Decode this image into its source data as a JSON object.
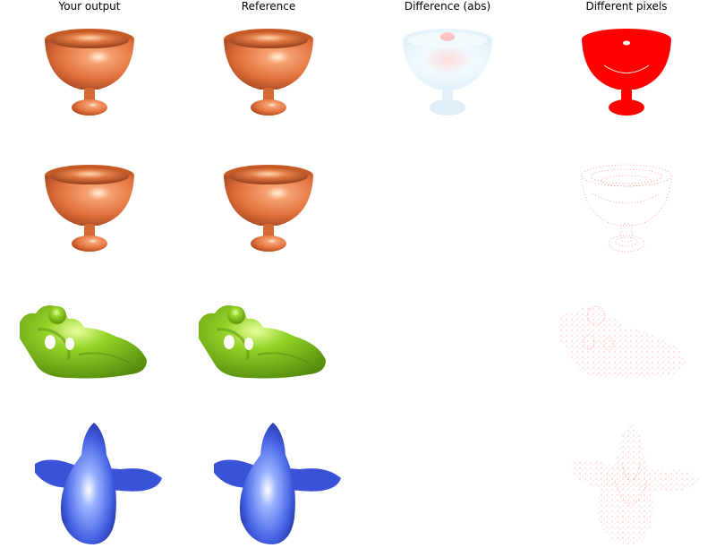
{
  "columns": [
    "Your output",
    "Reference",
    "Difference (abs)",
    "Different pixels"
  ],
  "rows": [
    {
      "model": "cup",
      "color": "#e8804e"
    },
    {
      "model": "cup",
      "color": "#e8804e"
    },
    {
      "model": "figure",
      "color": "#86cc22"
    },
    {
      "model": "airplane",
      "color": "#4a66e8"
    }
  ],
  "colors": {
    "cup": "#e8804e",
    "figure": "#86cc22",
    "airplane": "#4a66e8",
    "diff_pixels": "#ff0000",
    "diff_abs": "#bfe6f5"
  }
}
